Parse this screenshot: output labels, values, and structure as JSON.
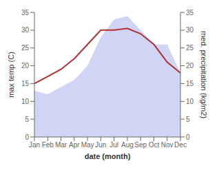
{
  "chart_data": {
    "type": "line",
    "categories": [
      "Jan",
      "Feb",
      "Mar",
      "Apr",
      "May",
      "Jun",
      "Jul",
      "Aug",
      "Sep",
      "Oct",
      "Nov",
      "Dec"
    ],
    "xlabel": "date (month)",
    "ylabel": "max temp (C)",
    "y2label": "med. precipitation (kg/m2)",
    "ylim": [
      0,
      35
    ],
    "yticks": [
      0,
      5,
      10,
      15,
      20,
      25,
      30,
      35
    ],
    "y2lim": [
      0,
      35
    ],
    "y2ticks": [
      0,
      5,
      10,
      15,
      20,
      25,
      30,
      35
    ],
    "grid": false,
    "series": [
      {
        "name": "med. precipitation (kg/m2)",
        "type": "area",
        "axis": "y2",
        "color": "#b8bef0",
        "values": [
          13,
          12,
          14,
          16,
          20,
          28,
          33,
          34,
          30,
          26,
          26,
          18
        ]
      },
      {
        "name": "max temp (C)",
        "type": "line",
        "color": "#b03030",
        "values": [
          15,
          17,
          19,
          22,
          26,
          30,
          30,
          30.5,
          29,
          26,
          21,
          18
        ]
      }
    ]
  }
}
